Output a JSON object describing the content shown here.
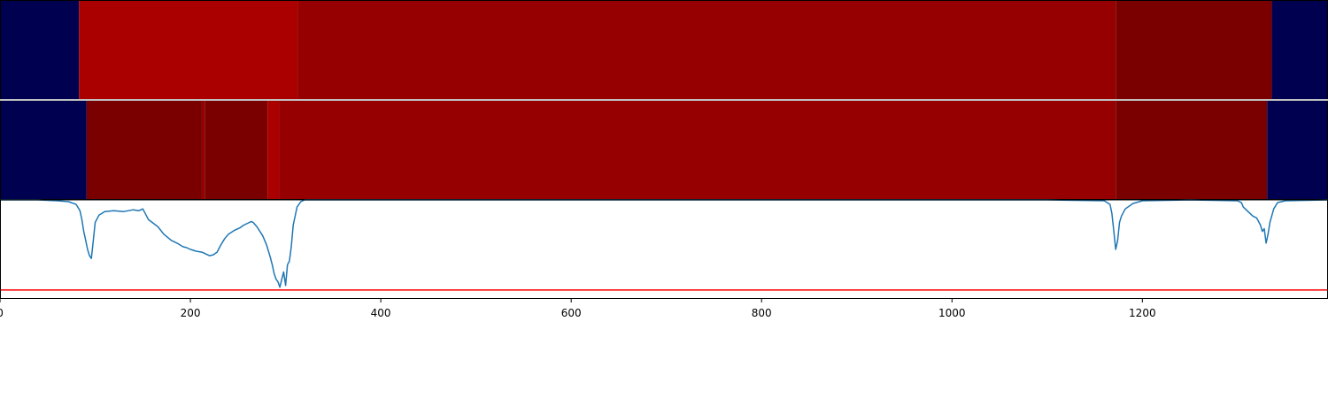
{
  "chart_data": [
    {
      "type": "heatmap",
      "name": "segment-track-1",
      "x_domain": [
        0,
        1395
      ],
      "colors": {
        "background": "#000050",
        "light": "#aa0000",
        "medium": "#960000",
        "dark": "#7a0000"
      },
      "segments": [
        {
          "start": 0,
          "end": 83,
          "color": "#000050"
        },
        {
          "start": 83,
          "end": 313,
          "color": "#aa0000"
        },
        {
          "start": 313,
          "end": 1172,
          "color": "#960000"
        },
        {
          "start": 1172,
          "end": 1336,
          "color": "#7a0000"
        },
        {
          "start": 1336,
          "end": 1395,
          "color": "#000050"
        }
      ]
    },
    {
      "type": "heatmap",
      "name": "segment-track-2",
      "x_domain": [
        0,
        1395
      ],
      "segments": [
        {
          "start": 0,
          "end": 91,
          "color": "#000050"
        },
        {
          "start": 91,
          "end": 212,
          "color": "#7a0000"
        },
        {
          "start": 212,
          "end": 215,
          "color": "#960000"
        },
        {
          "start": 215,
          "end": 281,
          "color": "#7a0000"
        },
        {
          "start": 281,
          "end": 293,
          "color": "#aa0000"
        },
        {
          "start": 293,
          "end": 1172,
          "color": "#960000"
        },
        {
          "start": 1172,
          "end": 1331,
          "color": "#7a0000"
        },
        {
          "start": 1331,
          "end": 1395,
          "color": "#000050"
        }
      ]
    },
    {
      "type": "line",
      "name": "signal-track",
      "xlim": [
        0,
        1395
      ],
      "ylim": [
        -0.1,
        1.0
      ],
      "line_color": "#1f77b4",
      "threshold": {
        "value": 0.0,
        "color": "#ff0000"
      },
      "x_ticks": [
        0,
        200,
        400,
        600,
        800,
        1000,
        1200
      ],
      "x_tick_labels": [
        "0",
        "200",
        "400",
        "600",
        "800",
        "1000",
        "1200"
      ],
      "series": [
        {
          "x": [
            0,
            40,
            60,
            72,
            80,
            84,
            86,
            88,
            90,
            92,
            94,
            96,
            98,
            100,
            104,
            110,
            120,
            130,
            140,
            146,
            150,
            154,
            156,
            160,
            166,
            172,
            180,
            186,
            192,
            196,
            200,
            206,
            212,
            216,
            220,
            224,
            228,
            232,
            236,
            240,
            246,
            252,
            256,
            260,
            264,
            266,
            270,
            276,
            280,
            284,
            286,
            288,
            290,
            292,
            294,
            296,
            298,
            300,
            302,
            304,
            306,
            308,
            312,
            316,
            320,
            330,
            400,
            600,
            800,
            1000,
            1100,
            1160,
            1166,
            1168,
            1170,
            1172,
            1174,
            1176,
            1178,
            1182,
            1190,
            1200,
            1250,
            1300,
            1304,
            1306,
            1310,
            1316,
            1320,
            1324,
            1326,
            1328,
            1330,
            1332,
            1334,
            1338,
            1342,
            1350,
            1395
          ],
          "y": [
            1.0,
            1.0,
            0.99,
            0.98,
            0.95,
            0.88,
            0.78,
            0.65,
            0.55,
            0.45,
            0.38,
            0.35,
            0.55,
            0.75,
            0.83,
            0.87,
            0.88,
            0.87,
            0.89,
            0.88,
            0.9,
            0.82,
            0.78,
            0.75,
            0.7,
            0.62,
            0.55,
            0.52,
            0.48,
            0.47,
            0.45,
            0.43,
            0.42,
            0.4,
            0.38,
            0.39,
            0.42,
            0.5,
            0.57,
            0.62,
            0.66,
            0.69,
            0.72,
            0.74,
            0.76,
            0.75,
            0.7,
            0.6,
            0.5,
            0.36,
            0.28,
            0.18,
            0.12,
            0.09,
            0.03,
            0.12,
            0.2,
            0.05,
            0.28,
            0.32,
            0.48,
            0.72,
            0.92,
            0.98,
            1.0,
            1.0,
            1.0,
            1.0,
            1.0,
            1.0,
            1.0,
            0.99,
            0.95,
            0.85,
            0.65,
            0.45,
            0.55,
            0.75,
            0.82,
            0.9,
            0.96,
            0.99,
            1.0,
            0.99,
            0.97,
            0.92,
            0.88,
            0.82,
            0.8,
            0.72,
            0.65,
            0.68,
            0.52,
            0.62,
            0.75,
            0.9,
            0.97,
            0.99,
            1.0
          ]
        }
      ]
    }
  ]
}
